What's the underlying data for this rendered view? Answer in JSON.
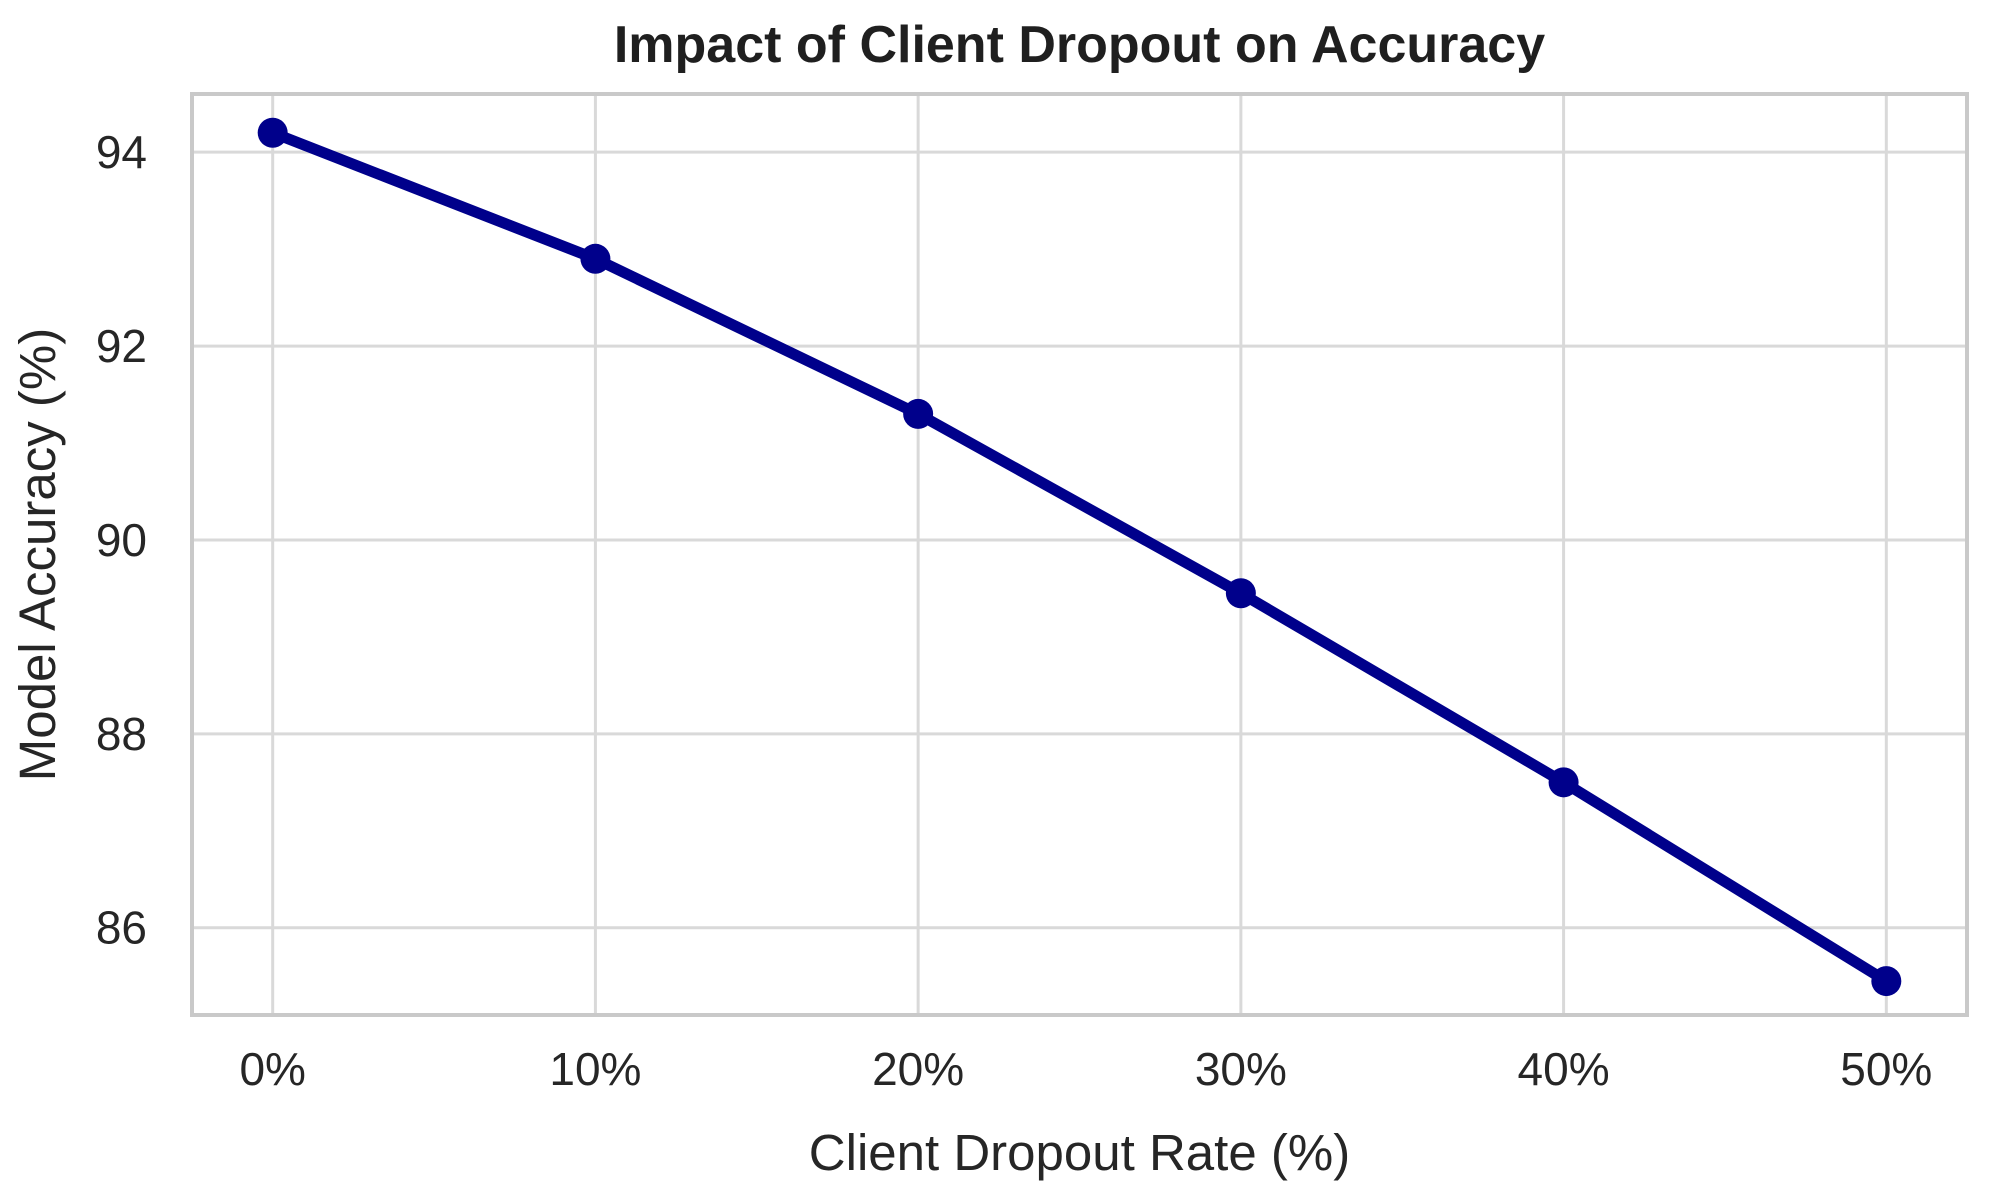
{
  "chart_data": {
    "type": "line",
    "title": "Impact of Client Dropout on Accuracy",
    "xlabel": "Client Dropout Rate (%)",
    "ylabel": "Model Accuracy (%)",
    "categories": [
      "0%",
      "10%",
      "20%",
      "30%",
      "40%",
      "50%"
    ],
    "series": [
      {
        "name": "Model Accuracy",
        "values": [
          94.2,
          92.9,
          91.3,
          89.45,
          87.5,
          85.45
        ]
      }
    ],
    "yticks": [
      86,
      88,
      90,
      92,
      94
    ],
    "ylim": [
      85.1,
      94.6
    ],
    "x_edge_padding": 0.25,
    "grid": true,
    "legend_position": "none",
    "colors": {
      "line": "#00008B",
      "marker": "#00008B",
      "grid": "#d9d9d9",
      "frame": "#c9c9c9",
      "tick_text": "#262626",
      "title_text": "#1f1f1f",
      "background": "#ffffff"
    }
  }
}
